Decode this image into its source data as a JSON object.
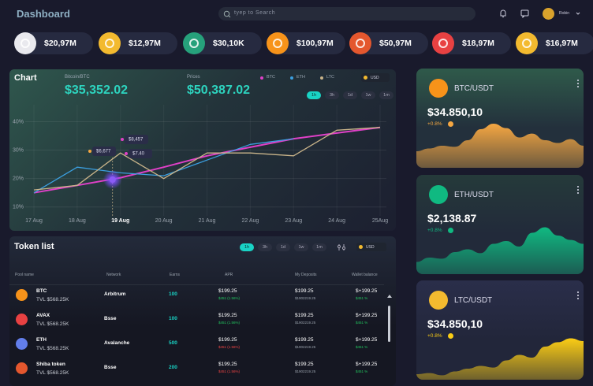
{
  "header": {
    "title": "Dashboard",
    "search_placeholder": "tyep to Search",
    "user": "Robin"
  },
  "tickers": [
    "$20,97M",
    "$12,97M",
    "$30,10K",
    "$100,97M",
    "$50,97M",
    "$18,97M",
    "$16,97M"
  ],
  "chart_panel": {
    "title": "Chart",
    "pair": "Bitcoin/BTC",
    "pair_value": "$35,352.02",
    "prices_label": "Prices",
    "prices_value": "$50,387.02",
    "currency": "USD",
    "ranges": [
      "1h",
      "3h",
      "1d",
      "1w",
      "1m"
    ]
  },
  "chart_data": [
    {
      "type": "line",
      "categories": [
        "17 Aug",
        "18 Aug",
        "19 Aug",
        "20 Aug",
        "21 Aug",
        "22 Aug",
        "23 Aug",
        "24 Aug",
        "25Aug"
      ],
      "series": [
        {
          "name": "BTC",
          "color": "#e040c8",
          "values": [
            15,
            17.6,
            20.3,
            24,
            28,
            31,
            34,
            36,
            38
          ]
        },
        {
          "name": "ETH",
          "color": "#3b9fe0",
          "values": [
            15,
            24,
            22,
            21,
            26.5,
            32,
            34,
            null,
            null
          ]
        },
        {
          "name": "LTC",
          "color": "#c9b48a",
          "values": [
            16,
            17.6,
            29,
            20,
            29,
            29,
            28,
            37,
            38
          ]
        }
      ],
      "ylim": [
        8,
        44
      ],
      "yticks": [
        {
          "value": 10,
          "label": "10%"
        },
        {
          "value": 20,
          "label": "20%"
        },
        {
          "value": 30,
          "label": "30%"
        },
        {
          "value": 40,
          "label": "40%"
        }
      ],
      "grid": true,
      "annotations": [
        "$8,457",
        "$6,677",
        "$7.40"
      ]
    },
    {
      "type": "area",
      "color": "#f5a742",
      "ylim": [
        0,
        100
      ],
      "values": [
        30,
        35,
        40,
        38,
        50,
        70,
        80,
        72,
        55,
        62,
        50,
        45,
        52,
        40
      ]
    },
    {
      "type": "area",
      "color": "#10b981",
      "ylim": [
        0,
        100
      ],
      "values": [
        22,
        30,
        28,
        40,
        45,
        38,
        55,
        60,
        50,
        75,
        85,
        70,
        62,
        55
      ]
    },
    {
      "type": "area",
      "color": "#facc15",
      "ylim": [
        0,
        100
      ],
      "values": [
        10,
        12,
        8,
        15,
        20,
        25,
        22,
        35,
        45,
        40,
        60,
        68,
        75,
        70
      ]
    }
  ],
  "tokens": {
    "title": "Token list",
    "ranges": [
      "1h",
      "3h",
      "1d",
      "1w",
      "1m"
    ],
    "currency": "USD",
    "columns": [
      "Pool name",
      "Network",
      "Earns",
      "APR",
      "My Deposits",
      "Wallet balance"
    ],
    "rows": [
      {
        "name": "BTC",
        "tvl": "TVL $568.25K",
        "network": "Arbitrum",
        "earns": "100",
        "apr": "$199.25",
        "apr_sub": "$451 (1.56%)",
        "deposits": "$199.25",
        "deposits_sub": "$1902219.25",
        "balance": "$+199.25",
        "balance_sub": "$451 %"
      },
      {
        "name": "AVAX",
        "tvl": "TVL $568.25K",
        "network": "Bsse",
        "earns": "100",
        "apr": "$199.25",
        "apr_sub": "$451 (1.56%)",
        "deposits": "$199.25",
        "deposits_sub": "$1902219.25",
        "balance": "$+199.25",
        "balance_sub": "$451 %"
      },
      {
        "name": "ETH",
        "tvl": "TVL $568.25K",
        "network": "Avalanche",
        "earns": "500",
        "apr": "$199.25",
        "apr_sub": "$451 (1.56%)",
        "deposits": "$199.25",
        "deposits_sub": "$1902219.25",
        "balance": "$+199.25",
        "balance_sub": "$451 %"
      },
      {
        "name": "Shiba token",
        "tvl": "TVL $568.25K",
        "network": "Bsse",
        "earns": "200",
        "apr": "$199.25",
        "apr_sub": "$451 (1.56%)",
        "deposits": "$199.25",
        "deposits_sub": "$1902219.25",
        "balance": "$+199.25",
        "balance_sub": "$451 %"
      }
    ]
  },
  "cards": [
    {
      "pair": "BTC/USDT",
      "price": "$34.850,10",
      "change": "+0.8%"
    },
    {
      "pair": "ETH/USDT",
      "price": "$2,138.87",
      "change": "+0.8%"
    },
    {
      "pair": "LTC/USDT",
      "price": "$34.850,10",
      "change": "+0.8%"
    }
  ]
}
